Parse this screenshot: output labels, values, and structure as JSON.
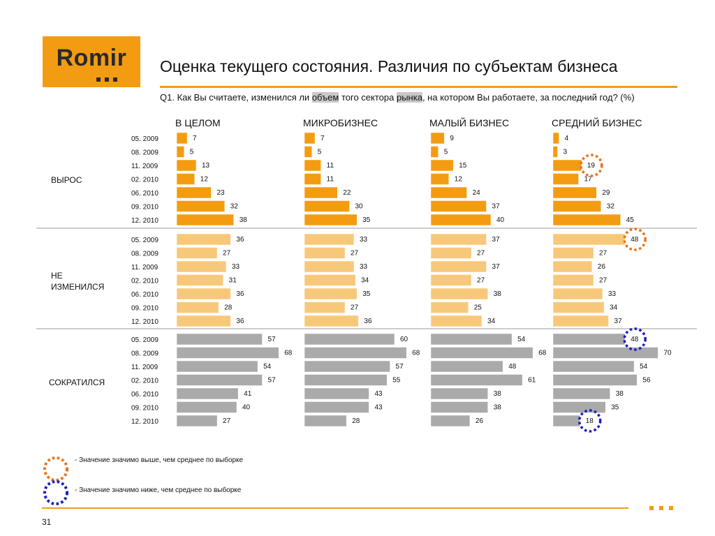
{
  "logo": {
    "text": "Romir"
  },
  "title": "Оценка текущего состояния. Различия по субъектам бизнеса",
  "question": {
    "prefix": "Q1. Как Вы считаете, изменился ли ",
    "word1": "объем",
    "middle": " того сектора ",
    "word2": "рынка",
    "suffix": ", на котором Вы работаете, за последний год? (%)"
  },
  "legend": {
    "higher": "- Значение значимо выше, чем среднее по выборке",
    "lower": "- Значение значимо ниже, чем среднее по выборке"
  },
  "page_number": "31",
  "colors": {
    "accent": "#f39c12",
    "bar_grew": "#f39c12",
    "bar_same": "#f8c87a",
    "bar_fell": "#aaaaaa",
    "marker_higher": "#e8731c",
    "marker_lower": "#1a1fbf"
  },
  "chart_data": {
    "type": "bar",
    "orientation": "horizontal",
    "segments": [
      "В ЦЕЛОМ",
      "МИКРОБИЗНЕС",
      "МАЛЫЙ БИЗНЕС",
      "СРЕДНИЙ БИЗНЕС"
    ],
    "periods": [
      "05. 2009",
      "08. 2009",
      "11. 2009",
      "02. 2010",
      "06. 2010",
      "09. 2010",
      "12. 2010"
    ],
    "groups": [
      {
        "name": "ВЫРОС",
        "values": [
          [
            7,
            5,
            13,
            12,
            23,
            32,
            38
          ],
          [
            7,
            5,
            11,
            11,
            22,
            30,
            35
          ],
          [
            9,
            5,
            15,
            12,
            24,
            37,
            40
          ],
          [
            4,
            3,
            19,
            17,
            29,
            32,
            45
          ]
        ]
      },
      {
        "name": "НЕ ИЗМЕНИЛСЯ",
        "values": [
          [
            36,
            27,
            33,
            31,
            36,
            28,
            36
          ],
          [
            33,
            27,
            33,
            34,
            35,
            27,
            36
          ],
          [
            37,
            27,
            37,
            27,
            38,
            25,
            34
          ],
          [
            48,
            27,
            26,
            27,
            33,
            34,
            37
          ]
        ]
      },
      {
        "name": "СОКРАТИЛСЯ",
        "values": [
          [
            57,
            68,
            54,
            57,
            41,
            40,
            27
          ],
          [
            60,
            68,
            57,
            55,
            43,
            43,
            28
          ],
          [
            54,
            68,
            48,
            61,
            38,
            38,
            26
          ],
          [
            48,
            70,
            54,
            56,
            38,
            35,
            18
          ]
        ]
      }
    ],
    "significance": [
      {
        "group": 0,
        "segment": 3,
        "period": 2,
        "type": "higher"
      },
      {
        "group": 1,
        "segment": 3,
        "period": 0,
        "type": "higher"
      },
      {
        "group": 2,
        "segment": 3,
        "period": 0,
        "type": "lower"
      },
      {
        "group": 2,
        "segment": 3,
        "period": 6,
        "type": "lower"
      }
    ]
  }
}
